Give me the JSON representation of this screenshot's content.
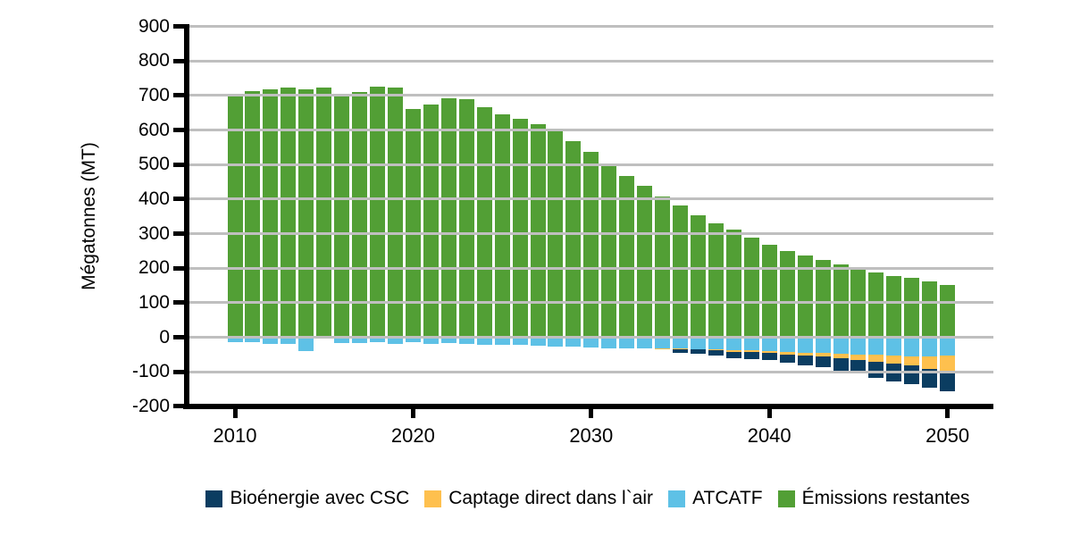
{
  "chart_data": {
    "type": "bar",
    "stacked": true,
    "title": "",
    "ylabel": "Mégatonnes (MT)",
    "xlabel": "",
    "ylim": [
      -200,
      900
    ],
    "y_ticks": [
      900,
      800,
      700,
      600,
      500,
      400,
      300,
      200,
      100,
      0,
      -100,
      -200
    ],
    "x_tick_years": [
      2010,
      2020,
      2030,
      2040,
      2050
    ],
    "grid": "horizontal",
    "gridline_color": "#bfbfbf",
    "axis_color": "#000000",
    "background": "#ffffff",
    "legend_position": "bottom",
    "x": [
      2010,
      2011,
      2012,
      2013,
      2014,
      2015,
      2016,
      2017,
      2018,
      2019,
      2020,
      2021,
      2022,
      2023,
      2024,
      2025,
      2026,
      2027,
      2028,
      2029,
      2030,
      2031,
      2032,
      2033,
      2034,
      2035,
      2036,
      2037,
      2038,
      2039,
      2040,
      2041,
      2042,
      2043,
      2044,
      2045,
      2046,
      2047,
      2048,
      2049,
      2050
    ],
    "series": [
      {
        "name": "Bioénergie avec CSC",
        "key": "bioenergie-csc",
        "color": "#0b3d61",
        "values": [
          0,
          0,
          0,
          0,
          0,
          0,
          0,
          0,
          0,
          0,
          0,
          0,
          0,
          0,
          0,
          0,
          0,
          0,
          0,
          0,
          0,
          0,
          0,
          0,
          0,
          -11,
          -13,
          -15,
          -19,
          -20,
          -22,
          -23,
          -29,
          -31,
          -36,
          -39,
          -46,
          -53,
          -55,
          -53,
          -57
        ]
      },
      {
        "name": "Captage direct dans l`air",
        "key": "captage-direct",
        "color": "#fec04e",
        "values": [
          0,
          0,
          0,
          0,
          0,
          0,
          0,
          0,
          0,
          0,
          0,
          0,
          0,
          0,
          0,
          0,
          0,
          0,
          0,
          0,
          0,
          0,
          0,
          0,
          -4,
          -2,
          -2,
          -3,
          -5,
          -5,
          -5,
          -8,
          -9,
          -10,
          -13,
          -17,
          -20,
          -23,
          -26,
          -37,
          -48
        ]
      },
      {
        "name": "ATCATF",
        "key": "atcatf",
        "color": "#5ec1e6",
        "values": [
          -15,
          -13,
          -19,
          -19,
          -41,
          0,
          -17,
          -17,
          -15,
          -19,
          -14,
          -19,
          -17,
          -20,
          -23,
          -21,
          -21,
          -24,
          -27,
          -27,
          -29,
          -31,
          -32,
          -32,
          -32,
          -32,
          -34,
          -34,
          -37,
          -38,
          -40,
          -42,
          -44,
          -46,
          -47,
          -50,
          -51,
          -53,
          -55,
          -55,
          -52
        ]
      },
      {
        "name": "Émissions restantes",
        "key": "emissions-restantes",
        "color": "#529f35",
        "values": [
          705,
          712,
          717,
          723,
          719,
          723,
          705,
          710,
          726,
          723,
          661,
          675,
          692,
          690,
          667,
          645,
          632,
          616,
          595,
          569,
          538,
          503,
          468,
          439,
          408,
          382,
          354,
          330,
          311,
          289,
          269,
          250,
          237,
          224,
          211,
          198,
          188,
          178,
          172,
          162,
          152
        ]
      }
    ]
  }
}
